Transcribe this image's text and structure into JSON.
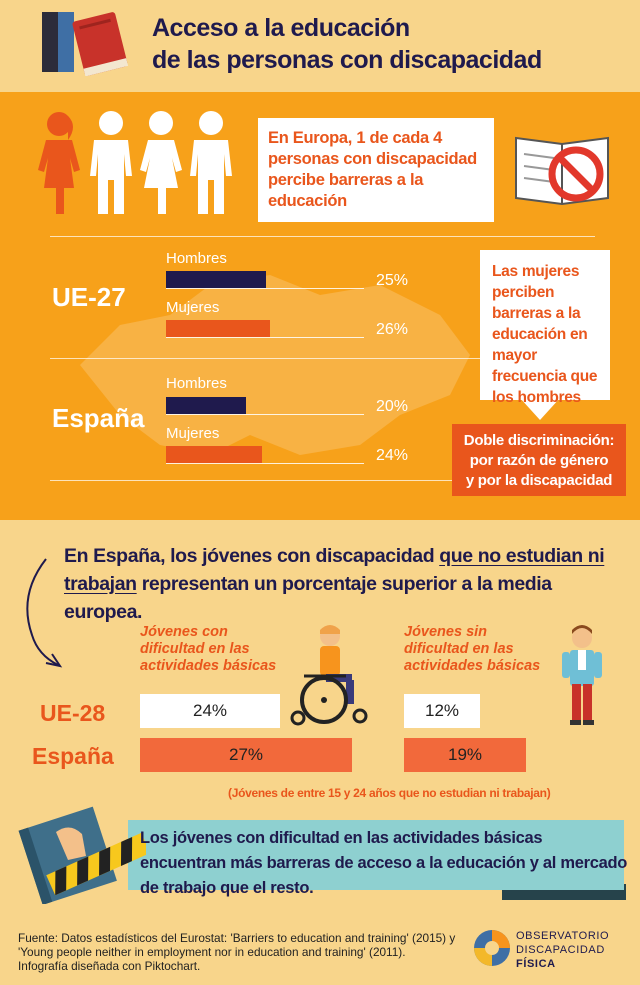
{
  "header": {
    "title_line1": "Acceso a la educación",
    "title_line2": "de las personas con discapacidad",
    "icon": "books-icon"
  },
  "europe": {
    "quote": "En Europa, 1 de cada 4 personas con discapacidad percibe barreras a la educación",
    "icons": [
      "woman-icon",
      "man-icon",
      "woman-icon",
      "man-icon",
      "no-books-icon"
    ],
    "colors": {
      "highlight_figure": "#e9561c",
      "bars_men": "#1f1a4d",
      "bars_women": "#e9561c",
      "background": "#f7a11a"
    },
    "regions": [
      {
        "name": "UE-27",
        "men_label": "Hombres",
        "men_value": 25,
        "men_text": "25%",
        "women_label": "Mujeres",
        "women_value": 26,
        "women_text": "26%"
      },
      {
        "name": "España",
        "men_label": "Hombres",
        "men_value": 20,
        "men_text": "20%",
        "women_label": "Mujeres",
        "women_value": 24,
        "women_text": "24%"
      }
    ],
    "women_quote": "Las mujeres perciben barreras a la educación en mayor frecuencia que los hombres",
    "double_line1": "Doble discriminación:",
    "double_line2": "por razón de género",
    "double_line3": "y por la discapacidad"
  },
  "youth": {
    "intro_part1": "En España, los jóvenes con discapacidad ",
    "intro_underlined": "que no estudian ni trabajan",
    "intro_part2": " representan un porcentaje superior a la media europea.",
    "col1_head": "Jóvenes con dificultad en las actividades básicas",
    "col2_head": "Jóvenes sin dificultad en las actividades básicas",
    "rows": [
      {
        "label": "UE-28",
        "col1": "24%",
        "col2": "12%"
      },
      {
        "label": "España",
        "col1": "27%",
        "col2": "19%"
      }
    ],
    "note": "(Jóvenes de entre 15 y 24 años que no estudian ni trabajan)",
    "icons": [
      "wheelchair-user-icon",
      "standing-boy-icon"
    ]
  },
  "banner": {
    "text": "Los jóvenes con dificultad en las actividades básicas encuentran más barreras de acceso a la educación y al mercado de trabajo que el resto.",
    "icon": "blocked-book-icon"
  },
  "footer": {
    "source": "Fuente: Datos estadísticos del Eurostat: 'Barriers to education and training' (2015) y 'Young people neither in employment nor in education and training' (2011). Infografía diseñada con Piktochart.",
    "logo_line1": "OBSERVATORIO",
    "logo_line2": "DISCAPACIDAD",
    "logo_line3": "FÍSICA"
  }
}
